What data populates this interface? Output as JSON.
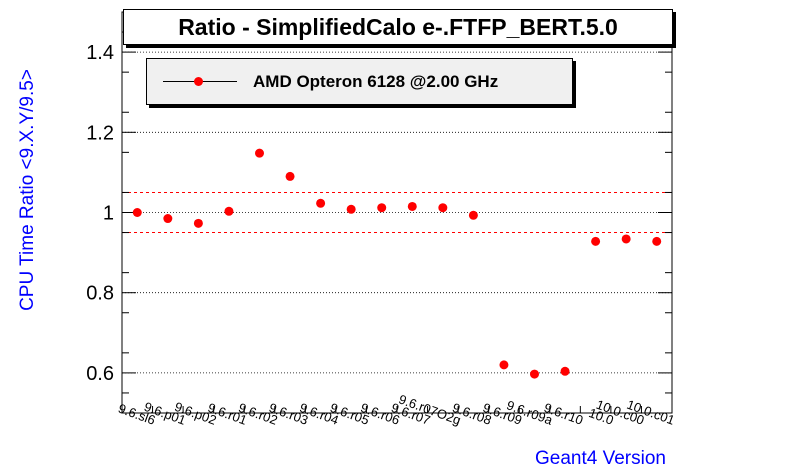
{
  "chart_data": {
    "type": "scatter",
    "title": "Ratio - SimplifiedCalo e-.FTFP_BERT.5.0",
    "xlabel": "Geant4 Version",
    "ylabel": "CPU Time Ratio <9.X.Y/9.5>",
    "categories": [
      "9.6.sl6",
      "9.6.p01",
      "9.6.p02",
      "9.6.r01",
      "9.6.r02",
      "9.6.r03",
      "9.6.r04",
      "9.6.r05",
      "9.6.r06",
      "9.6.r07",
      "9.6.r07O2g",
      "9.6.r08",
      "9.6.r09",
      "9.6.r09a",
      "9.6.r10",
      "10.0",
      "10.0.c00",
      "10.0.c01"
    ],
    "series": [
      {
        "name": "AMD Opteron 6128 @2.00 GHz",
        "color": "#ff0000",
        "values": [
          1.0,
          0.985,
          0.973,
          1.003,
          1.148,
          1.09,
          1.023,
          1.008,
          1.012,
          1.015,
          1.012,
          0.993,
          0.62,
          0.597,
          0.604,
          0.928,
          0.934,
          0.928
        ]
      }
    ],
    "ylim": [
      0.5,
      1.5
    ],
    "yticks": [
      0.6,
      0.8,
      1.0,
      1.2,
      1.4
    ],
    "ytick_labels": [
      "0.6",
      "0.8",
      "1",
      "1.2",
      "1.4"
    ],
    "reference_lines": [
      0.95,
      1.05
    ],
    "grid": "horizontal dotted",
    "legend_position": "top-left"
  },
  "colors": {
    "axis_label": "#0000ff",
    "marker": "#ff0000",
    "reference_line": "#ff0000",
    "legend_bg": "#f0f0f0"
  }
}
